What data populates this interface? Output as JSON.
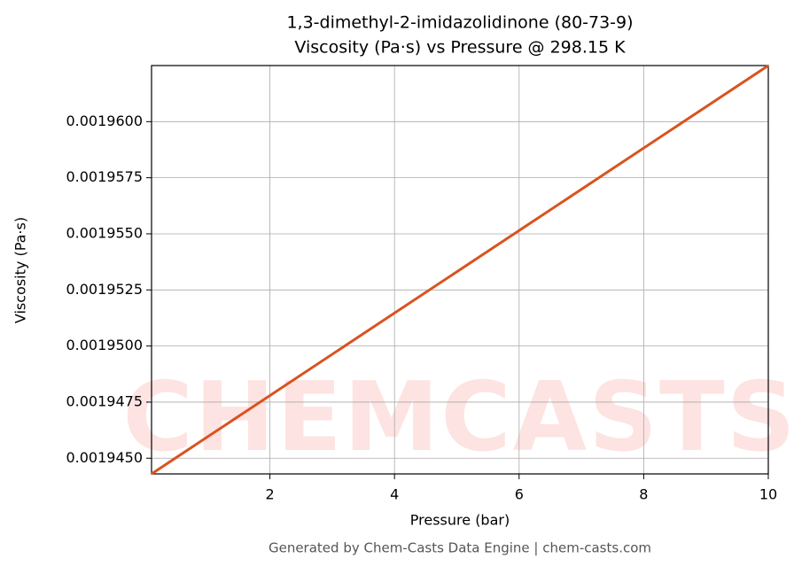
{
  "chart_data": {
    "type": "line",
    "title": "1,3-dimethyl-2-imidazolidinone (80-73-9)",
    "subtitle": "Viscosity (Pa·s) vs Pressure @ 298.15 K",
    "x_label": "Pressure (bar)",
    "y_label": "Viscosity (Pa·s)",
    "watermark": "CHEMCASTS",
    "footer": "Generated by Chem-Casts Data Engine | chem-casts.com",
    "x": [
      0.1,
      10
    ],
    "series": [
      {
        "name": "Viscosity",
        "color": "#d9531e",
        "values": [
          0.0019443,
          0.0019625
        ]
      }
    ],
    "xlim": [
      0.1,
      10
    ],
    "xticks": [
      2,
      4,
      6,
      8,
      10
    ],
    "ylim": [
      0.0019443,
      0.0019625
    ],
    "yticks": [
      {
        "value": 0.001945,
        "label": "0.0019450"
      },
      {
        "value": 0.0019475,
        "label": "0.0019475"
      },
      {
        "value": 0.00195,
        "label": "0.0019500"
      },
      {
        "value": 0.0019525,
        "label": "0.0019525"
      },
      {
        "value": 0.001955,
        "label": "0.0019550"
      },
      {
        "value": 0.0019575,
        "label": "0.0019575"
      },
      {
        "value": 0.00196,
        "label": "0.0019600"
      }
    ],
    "grid": true
  }
}
